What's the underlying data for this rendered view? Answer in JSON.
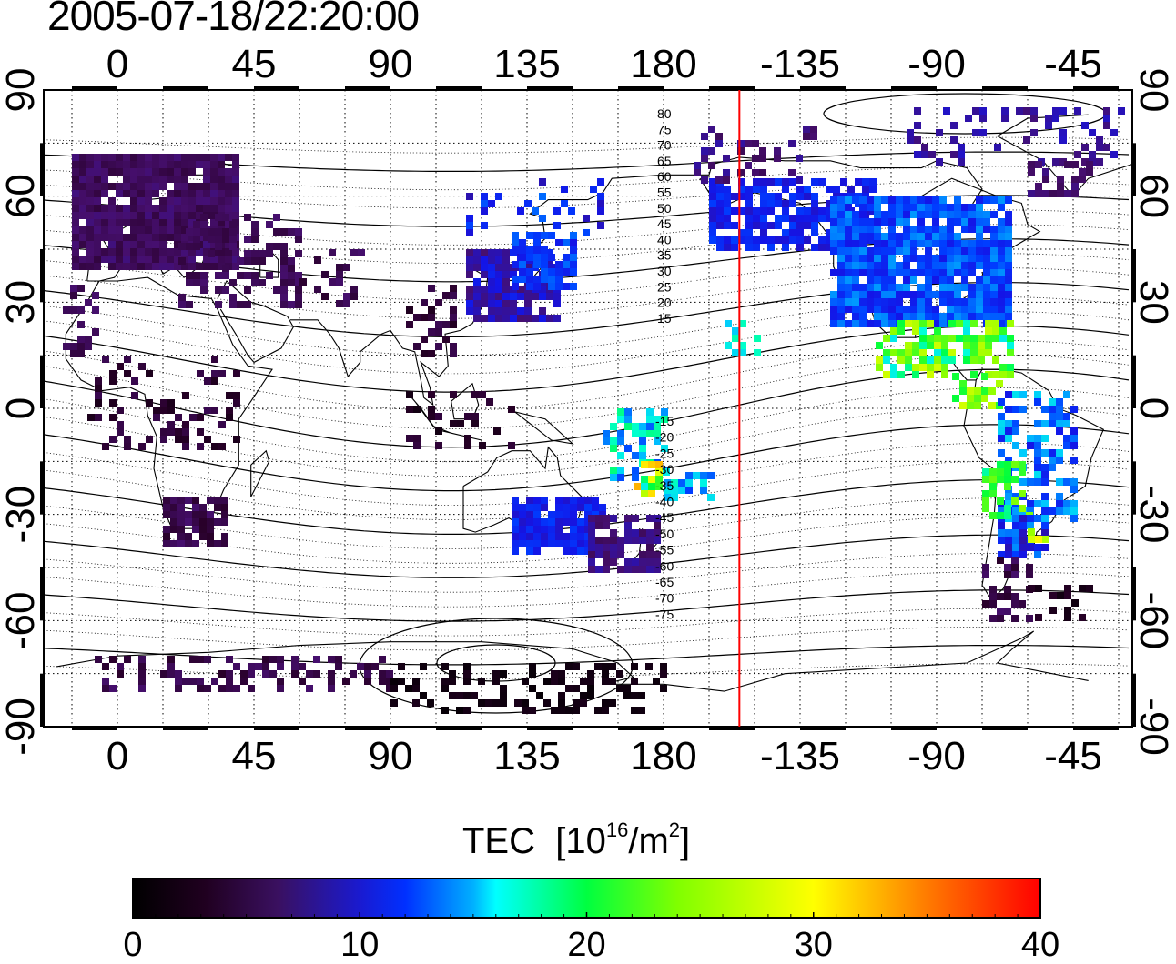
{
  "timestamp": "2005-07-18/22:20:00",
  "map": {
    "projection": "cylindrical",
    "lon_ticks": [
      "0",
      "45",
      "90",
      "135",
      "180",
      "-135",
      "-90",
      "-45"
    ],
    "lat_ticks": [
      "90",
      "60",
      "30",
      "0",
      "-30",
      "-60",
      "-90"
    ],
    "contour_labels_north": [
      "80",
      "75",
      "70",
      "65",
      "60",
      "55",
      "50",
      "45",
      "40",
      "35",
      "30",
      "25",
      "20",
      "15"
    ],
    "contour_labels_south": [
      "-15",
      "-20",
      "-25",
      "-30",
      "-35",
      "-40",
      "-45",
      "-50",
      "-55",
      "-60",
      "-65",
      "-70",
      "-75"
    ],
    "terminator_longitude": -155,
    "terminator_color": "#ff0000"
  },
  "colorbar": {
    "title": "TEC",
    "unit_prefix": "[10",
    "unit_exp": "16",
    "unit_mid": "/m",
    "unit_exp2": "2",
    "unit_suffix": "]",
    "min": 0,
    "max": 40,
    "tick_labels": [
      "0",
      "10",
      "20",
      "30",
      "40"
    ]
  }
}
